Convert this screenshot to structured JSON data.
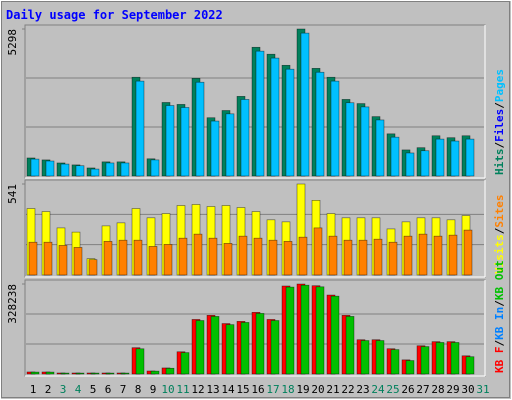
{
  "chart_data": {
    "type": "webalizer-daily",
    "title": "Daily usage for September 2022",
    "categories": [
      "1",
      "2",
      "3",
      "4",
      "5",
      "6",
      "7",
      "8",
      "9",
      "10",
      "11",
      "12",
      "13",
      "14",
      "15",
      "16",
      "17",
      "18",
      "19",
      "20",
      "21",
      "22",
      "23",
      "24",
      "25",
      "26",
      "27",
      "28",
      "29",
      "30",
      "31"
    ],
    "category_colors": [
      "#000000",
      "#000000",
      "#00805c",
      "#00805c",
      "#000000",
      "#000000",
      "#000000",
      "#000000",
      "#000000",
      "#00805c",
      "#00805c",
      "#000000",
      "#000000",
      "#000000",
      "#000000",
      "#000000",
      "#00805c",
      "#00805c",
      "#000000",
      "#000000",
      "#000000",
      "#000000",
      "#000000",
      "#00805c",
      "#00805c",
      "#000000",
      "#000000",
      "#000000",
      "#000000",
      "#000000",
      "#00805c"
    ],
    "legend_separator": "/",
    "panels": [
      {
        "ylim": [
          0,
          5298
        ],
        "yticks": [
          5298
        ],
        "series": [
          {
            "name": "Hits",
            "color": "#00805c",
            "values": [
              650,
              580,
              470,
              400,
              290,
              510,
              510,
              3560,
              620,
              2650,
              2580,
              3520,
              2100,
              2360,
              2870,
              4640,
              4390,
              3990,
              5298,
              3880,
              3560,
              2760,
              2610,
              2140,
              1520,
              940,
              1020,
              1450,
              1380,
              1450,
              null
            ]
          },
          {
            "name": "Files",
            "color": "#0000ff",
            "values": [
              null,
              null,
              null,
              null,
              null,
              null,
              null,
              null,
              null,
              null,
              null,
              null,
              null,
              null,
              null,
              null,
              null,
              null,
              null,
              null,
              null,
              null,
              null,
              null,
              null,
              null,
              null,
              null,
              null,
              null,
              null
            ]
          },
          {
            "name": "Pages",
            "color": "#00c0ff",
            "values": [
              610,
              540,
              430,
              370,
              250,
              470,
              470,
              3420,
              580,
              2540,
              2470,
              3380,
              1980,
              2240,
              2760,
              4500,
              4250,
              3850,
              5150,
              3740,
              3420,
              2640,
              2490,
              2020,
              1400,
              830,
              910,
              1330,
              1260,
              1330,
              null
            ]
          }
        ]
      },
      {
        "ylim": [
          0,
          541
        ],
        "yticks": [
          541
        ],
        "series": [
          {
            "name": "Visits",
            "color": "#ffff00",
            "values": [
              395,
              377,
              280,
              255,
              97,
              292,
              310,
              395,
              340,
              365,
              413,
              419,
              407,
              413,
              401,
              377,
              328,
              316,
              541,
              444,
              365,
              340,
              340,
              340,
              274,
              316,
              340,
              340,
              328,
              353,
              null
            ]
          },
          {
            "name": "Sites",
            "color": "#ff8000",
            "values": [
              195,
              195,
              176,
              164,
              91,
              200,
              207,
              207,
              170,
              182,
              219,
              243,
              219,
              188,
              231,
              219,
              207,
              200,
              225,
              280,
              231,
              207,
              207,
              213,
              195,
              231,
              243,
              231,
              237,
              267,
              null
            ]
          }
        ]
      },
      {
        "ylim": [
          0,
          328238
        ],
        "yticks": [
          328238
        ],
        "series": [
          {
            "name": "KB F",
            "color": "#ff0000",
            "values": [
              7400,
              7400,
              3700,
              3700,
              3700,
              3700,
              3700,
              95900,
              11000,
              22100,
              81100,
              199000,
              214000,
              184000,
              192000,
              225000,
              199000,
              321000,
              328238,
              322000,
              288000,
              214000,
              125000,
              125000,
              92200,
              51600,
              103000,
              118000,
              118000,
              66400,
              null
            ]
          },
          {
            "name": "KB In",
            "color": "#0080ff",
            "values": [
              null,
              null,
              null,
              null,
              null,
              null,
              null,
              null,
              null,
              null,
              null,
              null,
              null,
              null,
              null,
              null,
              null,
              null,
              null,
              null,
              null,
              null,
              null,
              null,
              null,
              null,
              null,
              null,
              null,
              null,
              null
            ]
          },
          {
            "name": "KB Out",
            "color": "#00c000",
            "values": [
              7000,
              7000,
              3400,
              3400,
              3400,
              3400,
              3400,
              92000,
              10500,
              21000,
              78000,
              195000,
              210000,
              180000,
              188000,
              221000,
              195000,
              317000,
              324000,
              318000,
              284000,
              210000,
              122000,
              122000,
              89000,
              49000,
              100000,
              115000,
              115000,
              63000,
              null
            ]
          }
        ]
      }
    ]
  }
}
